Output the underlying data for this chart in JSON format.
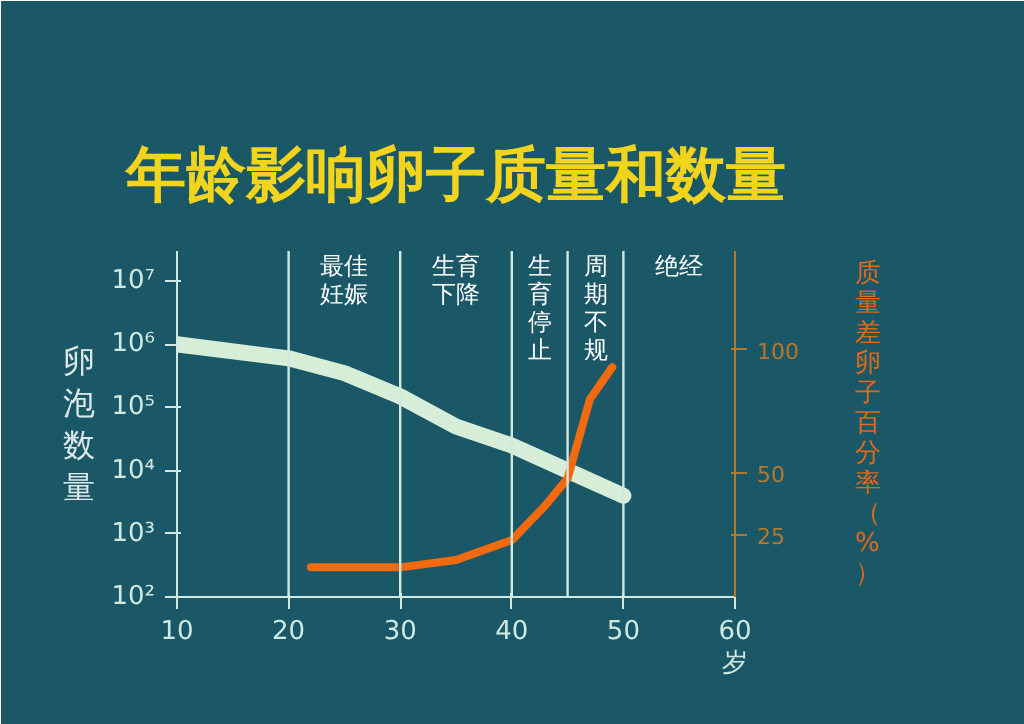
{
  "chart_data": {
    "type": "line",
    "title": "年龄影响卵子质量和数量",
    "xlabel": "岁",
    "ylabel": "卵泡数量",
    "y2label": "质量差卵子百分率（%）",
    "series": [
      {
        "color": "#d6eed8",
        "x": [
          10,
          20,
          25,
          30,
          35,
          40,
          45,
          50
        ],
        "values": [
          1000000,
          600000,
          350000,
          150000,
          50000,
          25000,
          10000,
          4000
        ]
      },
      {
        "color": "#f26a10",
        "axis": "y2",
        "x": [
          22,
          30,
          35,
          40,
          43,
          45,
          47,
          49
        ],
        "values": [
          12,
          12,
          15,
          23,
          37,
          48,
          80,
          93
        ]
      }
    ],
    "log": "y",
    "grid": false,
    "line_style": "solid",
    "marker": "none",
    "xlim": [
      10,
      60
    ],
    "xticks": [
      10,
      20,
      30,
      40,
      50,
      60
    ],
    "ylim": [
      100,
      30000000
    ],
    "yticks": [
      {
        "value": 100,
        "label": "10²"
      },
      {
        "value": 1000,
        "label": "10³"
      },
      {
        "value": 10000,
        "label": "10⁴"
      },
      {
        "value": 100000,
        "label": "10⁵"
      },
      {
        "value": 1000000,
        "label": "10⁶"
      },
      {
        "value": 10000000,
        "label": "10⁷"
      }
    ],
    "y2lim": [
      0,
      140
    ],
    "y2ticks": [
      25,
      50,
      100
    ],
    "ref_lines": [
      {
        "axis": "x",
        "value": 20,
        "label": "最佳妊娠"
      },
      {
        "axis": "x",
        "value": 30,
        "label": "生育下降"
      },
      {
        "axis": "x",
        "value": 40,
        "label": "生育停止"
      },
      {
        "axis": "x",
        "value": 45,
        "label": "周期不规"
      },
      {
        "axis": "x",
        "value": 50,
        "label": "绝经"
      }
    ]
  }
}
